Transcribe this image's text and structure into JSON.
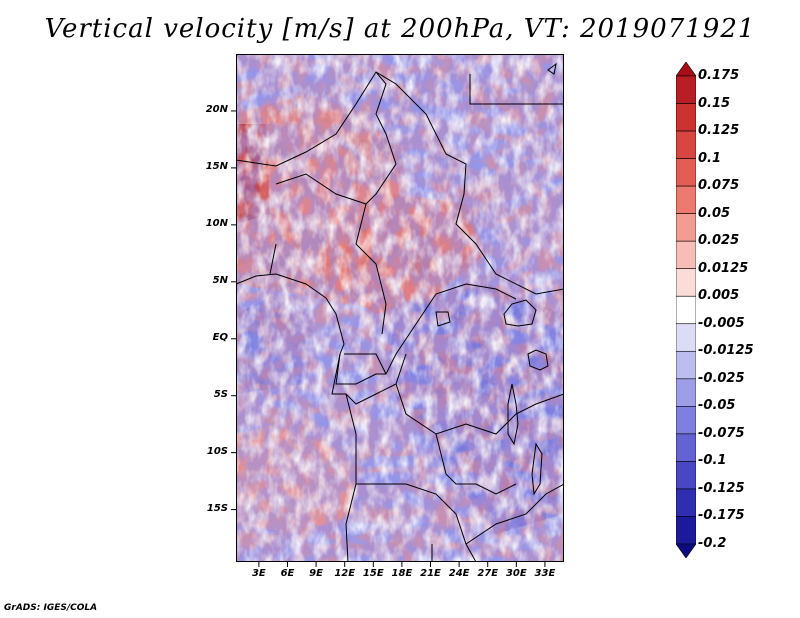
{
  "title": "Vertical velocity [m/s] at 200hPa, VT: 2019071921",
  "credit": "GrADS: IGES/COLA",
  "lat_labels": [
    "20N",
    "15N",
    "10N",
    "5N",
    "EQ",
    "5S",
    "10S",
    "15S"
  ],
  "lat_values": [
    20,
    15,
    10,
    5,
    0,
    -5,
    -10,
    -15
  ],
  "lon_labels": [
    "3E",
    "6E",
    "9E",
    "12E",
    "15E",
    "18E",
    "21E",
    "24E",
    "27E",
    "30E",
    "33E"
  ],
  "lon_values": [
    3,
    6,
    9,
    12,
    15,
    18,
    21,
    24,
    27,
    30,
    33
  ],
  "colorbar": {
    "levels": [
      "0.175",
      "0.15",
      "0.125",
      "0.1",
      "0.075",
      "0.05",
      "0.025",
      "0.0125",
      "0.005",
      "-0.005",
      "-0.0125",
      "-0.025",
      "-0.05",
      "-0.075",
      "-0.1",
      "-0.125",
      "-0.175",
      "-0.2"
    ],
    "colors": [
      "#a50f15",
      "#b81f24",
      "#cb3230",
      "#d9463f",
      "#e35d53",
      "#ec7a6f",
      "#f39c92",
      "#f8bdb6",
      "#fcdcd8",
      "#ffffff",
      "#dcdcf6",
      "#bdbdf0",
      "#9d9de8",
      "#7f7fdf",
      "#6363d3",
      "#4848c4",
      "#2e2eb1",
      "#1a1a9a",
      "#0c0c80"
    ]
  }
}
